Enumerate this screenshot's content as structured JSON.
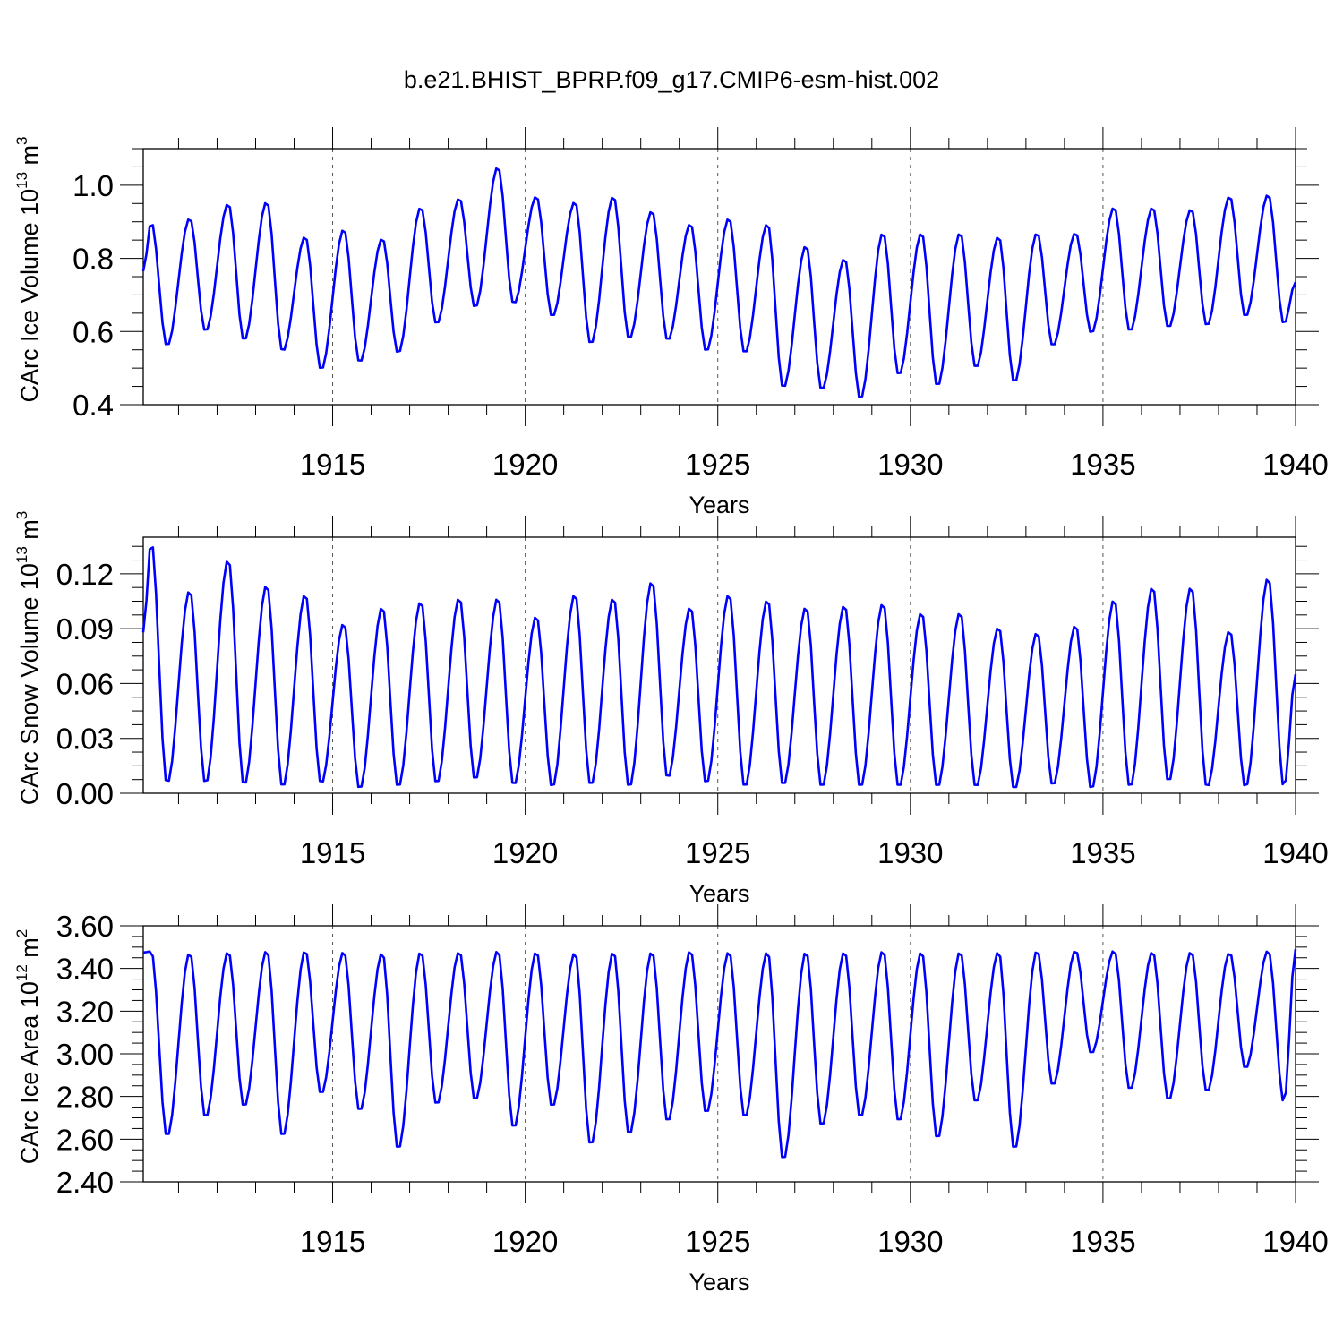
{
  "title": "b.e21.BHIST_BPRP.f09_g17.CMIP6-esm-hist.002",
  "colors": {
    "line": "#0000ff",
    "axis": "#000000",
    "grid": "#555555"
  },
  "chart_data": [
    {
      "type": "line",
      "title": "b.e21.BHIST_BPRP.f09_g17.CMIP6-esm-hist.002",
      "xlabel": "Years",
      "ylabel": "CArc Ice Volume 10",
      "ylabel_sup": "13",
      "ylabel_unit": " m",
      "ylabel_unit_sup": "3",
      "xlim": [
        1910.083,
        1940.0
      ],
      "ylim": [
        0.4,
        1.1
      ],
      "xticks": [
        "1915",
        "1920",
        "1925",
        "1930",
        "1935",
        "1940"
      ],
      "yticks": [
        "0.4",
        "0.6",
        "0.8",
        "1.0"
      ],
      "ytick_values": [
        0.4,
        0.6,
        0.8,
        1.0
      ],
      "grid": "vertical dashed at 1915, 1920, 1925, 1930, 1935",
      "series": [
        {
          "name": "CArc Ice Volume",
          "peaks": [
            0.9,
            0.91,
            0.95,
            0.955,
            0.86,
            0.88,
            0.855,
            0.94,
            0.965,
            1.05,
            0.97,
            0.955,
            0.97,
            0.93,
            0.895,
            0.91,
            0.895,
            0.835,
            0.8,
            0.87,
            0.87,
            0.87,
            0.86,
            0.87,
            0.87,
            0.94,
            0.94,
            0.935,
            0.97,
            0.975
          ],
          "troughs": [
            0.56,
            0.6,
            0.575,
            0.545,
            0.495,
            0.515,
            0.54,
            0.62,
            0.665,
            0.675,
            0.64,
            0.565,
            0.58,
            0.575,
            0.545,
            0.54,
            0.445,
            0.44,
            0.415,
            0.48,
            0.45,
            0.5,
            0.46,
            0.56,
            0.595,
            0.6,
            0.61,
            0.615,
            0.64,
            0.62
          ],
          "start": 0.765,
          "end": 0.735
        }
      ]
    },
    {
      "type": "line",
      "xlabel": "Years",
      "ylabel": "CArc Snow Volume 10",
      "ylabel_sup": "13",
      "ylabel_unit": " m",
      "ylabel_unit_sup": "3",
      "xlim": [
        1910.083,
        1940.0
      ],
      "ylim": [
        0.0,
        0.14
      ],
      "xticks": [
        "1915",
        "1920",
        "1925",
        "1930",
        "1935",
        "1940"
      ],
      "yticks": [
        "0.00",
        "0.03",
        "0.06",
        "0.09",
        "0.12"
      ],
      "ytick_values": [
        0.0,
        0.03,
        0.06,
        0.09,
        0.12
      ],
      "grid": "vertical dashed at 1915, 1920, 1925, 1930, 1935",
      "series": [
        {
          "name": "CArc Snow Volume",
          "peaks": [
            0.138,
            0.111,
            0.128,
            0.114,
            0.109,
            0.093,
            0.102,
            0.105,
            0.107,
            0.107,
            0.097,
            0.109,
            0.107,
            0.116,
            0.102,
            0.109,
            0.106,
            0.102,
            0.103,
            0.104,
            0.099,
            0.099,
            0.091,
            0.088,
            0.092,
            0.106,
            0.113,
            0.113,
            0.089,
            0.118
          ],
          "troughs": [
            0.005,
            0.005,
            0.004,
            0.003,
            0.005,
            0.002,
            0.003,
            0.005,
            0.007,
            0.004,
            0.003,
            0.004,
            0.003,
            0.008,
            0.005,
            0.003,
            0.004,
            0.003,
            0.003,
            0.003,
            0.003,
            0.003,
            0.002,
            0.004,
            0.002,
            0.003,
            0.006,
            0.003,
            0.003,
            0.003
          ],
          "start": 0.088,
          "end": 0.065
        }
      ]
    },
    {
      "type": "line",
      "xlabel": "Years",
      "ylabel": "CArc Ice Area 10",
      "ylabel_sup": "12",
      "ylabel_unit": " m",
      "ylabel_unit_sup": "2",
      "xlim": [
        1910.083,
        1940.0
      ],
      "ylim": [
        2.4,
        3.6
      ],
      "xticks": [
        "1915",
        "1920",
        "1925",
        "1930",
        "1935",
        "1940"
      ],
      "yticks": [
        "2.40",
        "2.60",
        "2.80",
        "3.00",
        "3.20",
        "3.40",
        "3.60"
      ],
      "ytick_values": [
        2.4,
        2.6,
        2.8,
        3.0,
        3.2,
        3.4,
        3.6
      ],
      "grid": "vertical dashed at 1915, 1920, 1925, 1930, 1935",
      "series": [
        {
          "name": "CArc Ice Area",
          "peaks": [
            3.48,
            3.475,
            3.48,
            3.485,
            3.485,
            3.48,
            3.475,
            3.48,
            3.48,
            3.485,
            3.48,
            3.475,
            3.48,
            3.48,
            3.485,
            3.48,
            3.48,
            3.48,
            3.48,
            3.485,
            3.48,
            3.48,
            3.48,
            3.485,
            3.485,
            3.485,
            3.48,
            3.48,
            3.475,
            3.485
          ],
          "troughs": [
            2.61,
            2.7,
            2.75,
            2.61,
            2.81,
            2.73,
            2.55,
            2.76,
            2.78,
            2.65,
            2.75,
            2.57,
            2.62,
            2.68,
            2.72,
            2.7,
            2.5,
            2.66,
            2.7,
            2.68,
            2.6,
            2.77,
            2.55,
            2.85,
            3.0,
            2.83,
            2.78,
            2.82,
            2.93,
            2.77
          ],
          "start": 3.475,
          "end": 3.49
        }
      ]
    }
  ]
}
